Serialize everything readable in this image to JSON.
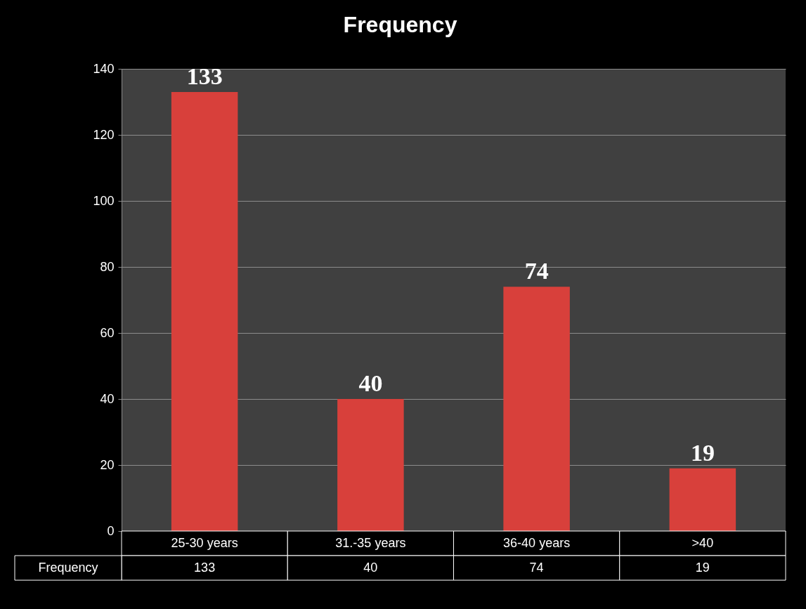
{
  "chart_data": {
    "type": "bar",
    "title": "Frequency",
    "categories": [
      "25-30 years",
      "31.-35 years",
      "36-40 years",
      ">40"
    ],
    "series": [
      {
        "name": "Frequency",
        "color": "#d8403b",
        "values": [
          133,
          40,
          74,
          19
        ]
      }
    ],
    "data_labels": true,
    "ylim": [
      0,
      140
    ],
    "yticks": [
      0,
      20,
      40,
      60,
      80,
      100,
      120,
      140
    ],
    "grid": "y",
    "annotations": [
      "133",
      "40",
      "74",
      "19"
    ]
  }
}
